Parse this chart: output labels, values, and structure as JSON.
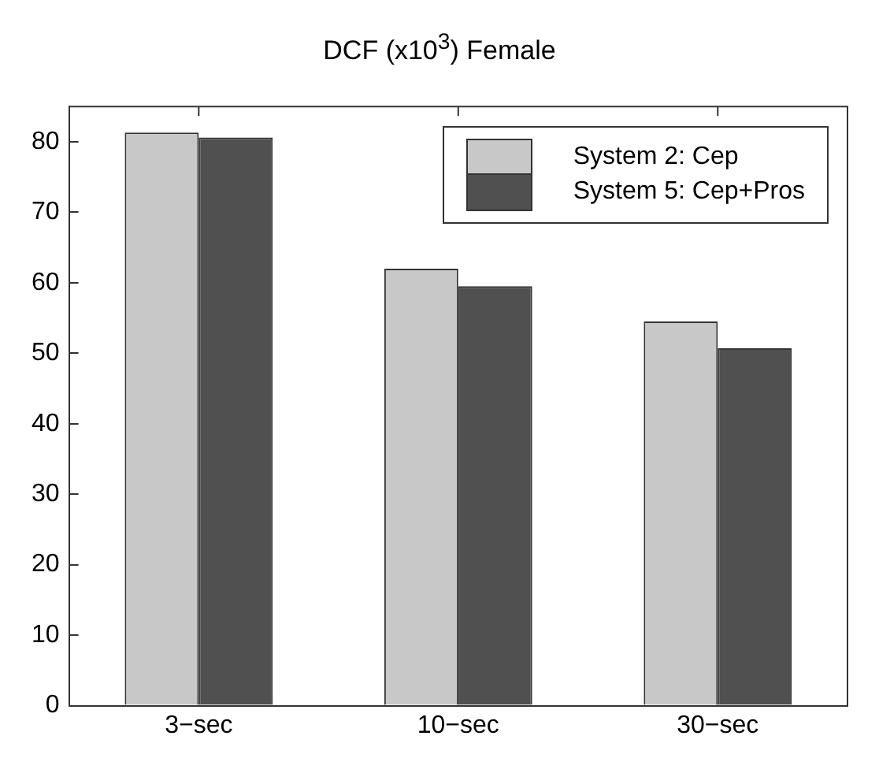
{
  "chart_data": {
    "type": "bar",
    "title": "DCF (x10$^{3}$) Female",
    "categories": [
      "3−sec",
      "10−sec",
      "30−sec"
    ],
    "series": [
      {
        "name": "System 2: Cep",
        "color": "#c8c8c8",
        "values": [
          81.3,
          62.0,
          54.5
        ]
      },
      {
        "name": "System 5: Cep+Pros",
        "color": "#505050",
        "values": [
          80.6,
          59.5,
          50.7
        ]
      }
    ],
    "ylim": [
      0,
      85
    ],
    "yticks": [
      0,
      10,
      20,
      30,
      40,
      50,
      60,
      70,
      80
    ],
    "grid": false,
    "legend": "top right"
  }
}
